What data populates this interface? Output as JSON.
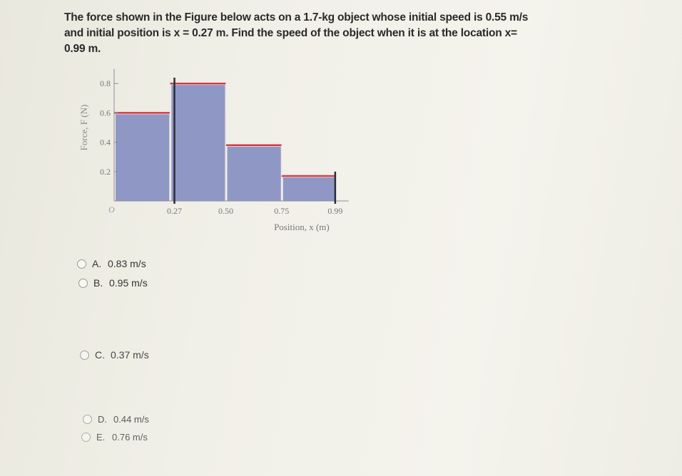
{
  "question": {
    "text": "The force shown in the Figure below acts on a 1.7-kg object whose initial speed is 0.55 m/s and initial position is x = 0.27 m. Find the speed of the object when it is at the location x= 0.99 m."
  },
  "chart_data": {
    "type": "bar",
    "xlabel": "Position, x (m)",
    "ylabel": "Force, F (N)",
    "origin_label": "O",
    "x_ticks": [
      "0.27",
      "0.50",
      "0.75",
      "0.99"
    ],
    "y_ticks": [
      "0.2",
      "0.4",
      "0.6",
      "0.8"
    ],
    "bars": [
      {
        "x0": 0,
        "x1": 0.25,
        "value": 0.6
      },
      {
        "x0": 0.25,
        "x1": 0.5,
        "value": 0.8
      },
      {
        "x0": 0.5,
        "x1": 0.75,
        "value": 0.38
      },
      {
        "x0": 0.75,
        "x1": 0.99,
        "value": 0.17
      }
    ],
    "markers_x": [
      0.27,
      0.99
    ],
    "xlim": [
      0,
      1.05
    ],
    "ylim": [
      0,
      0.9
    ],
    "colors": {
      "bar": "#8f98c4",
      "top_line": "#d8384a",
      "marker": "#2a2d3a"
    }
  },
  "options": [
    {
      "letter": "A.",
      "text": "0.83 m/s"
    },
    {
      "letter": "B.",
      "text": "0.95 m/s"
    },
    {
      "letter": "C.",
      "text": "0.37 m/s"
    },
    {
      "letter": "D.",
      "text": "0.44 m/s"
    },
    {
      "letter": "E.",
      "text": "0.76 m/s"
    }
  ]
}
